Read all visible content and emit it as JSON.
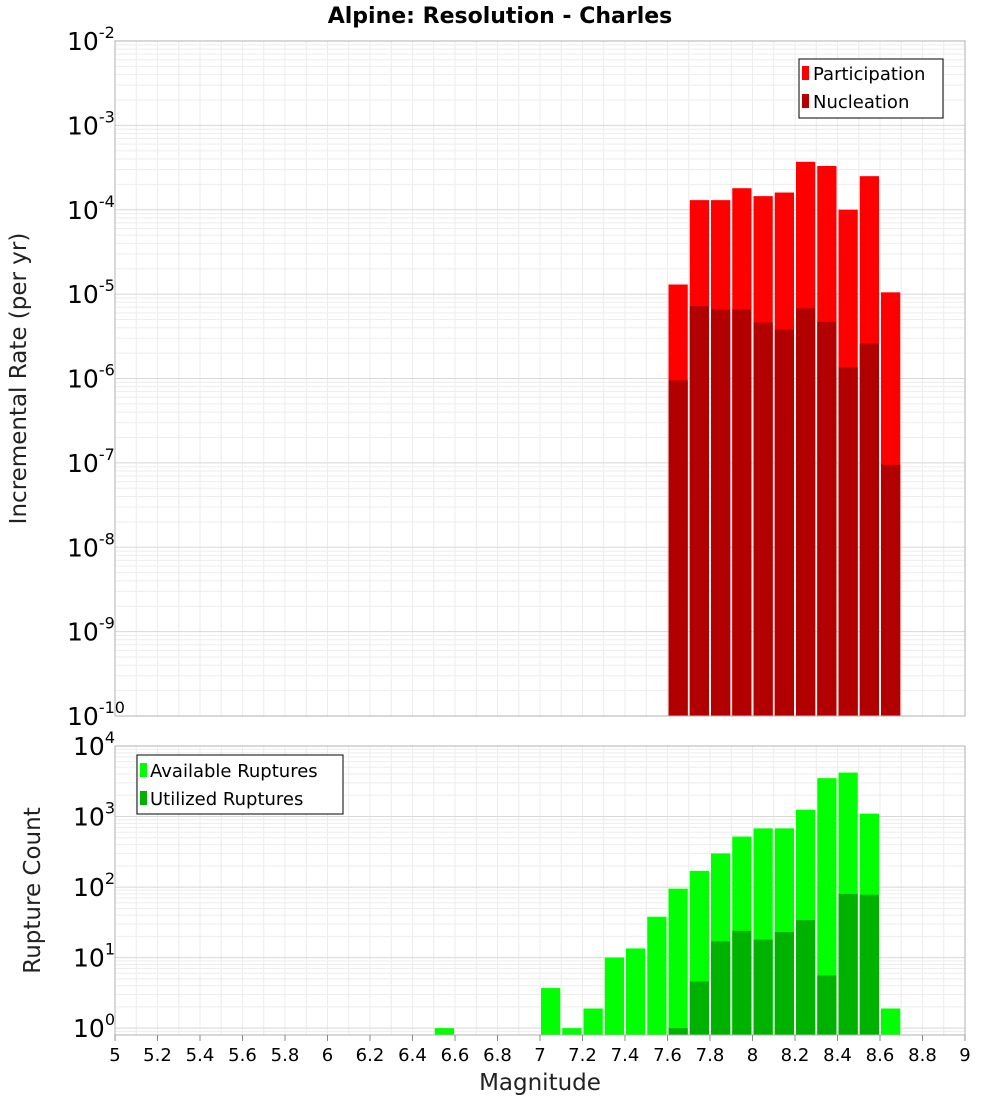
{
  "chart_data": [
    {
      "type": "bar",
      "title": "Alpine: Resolution - Charles",
      "xlabel": "",
      "ylabel": "Incremental Rate (per yr)",
      "yscale": "log",
      "ylim": [
        1e-10,
        0.01
      ],
      "xlim": [
        5,
        9
      ],
      "bin_width": 0.1,
      "grid": true,
      "legend_position": "top-right",
      "x": [
        7.65,
        7.75,
        7.85,
        7.95,
        8.05,
        8.15,
        8.25,
        8.35,
        8.45,
        8.55,
        8.65
      ],
      "series": [
        {
          "name": "Participation",
          "color": "#ff0000",
          "values": [
            1.3e-05,
            0.00013,
            0.00013,
            0.00018,
            0.000145,
            0.00016,
            0.00037,
            0.00033,
            0.0001,
            0.00025,
            1.05e-05
          ]
        },
        {
          "name": "Nucleation",
          "color": "#b20000",
          "values": [
            9.5e-07,
            7.2e-06,
            6.6e-06,
            6.6e-06,
            4.6e-06,
            3.8e-06,
            6.8e-06,
            4.7e-06,
            1.35e-06,
            2.6e-06,
            9.5e-08
          ]
        }
      ]
    },
    {
      "type": "bar",
      "title": "",
      "xlabel": "Magnitude",
      "ylabel": "Rupture Count",
      "yscale": "log",
      "ylim": [
        0.8,
        10000.0
      ],
      "xlim": [
        5,
        9
      ],
      "bin_width": 0.1,
      "xticks": [
        "5",
        "5.2",
        "5.4",
        "5.6",
        "5.8",
        "6",
        "6.2",
        "6.4",
        "6.6",
        "6.8",
        "7",
        "7.2",
        "7.4",
        "7.6",
        "7.8",
        "8",
        "8.2",
        "8.4",
        "8.6",
        "8.8",
        "9"
      ],
      "grid": true,
      "legend_position": "top-left",
      "x": [
        6.55,
        7.05,
        7.15,
        7.25,
        7.35,
        7.45,
        7.55,
        7.65,
        7.75,
        7.85,
        7.95,
        8.05,
        8.15,
        8.25,
        8.35,
        8.45,
        8.55,
        8.65
      ],
      "series": [
        {
          "name": "Available Ruptures",
          "color": "#00ff00",
          "values": [
            1,
            3.7,
            1,
            1.9,
            10,
            13.5,
            38,
            95,
            170,
            300,
            520,
            680,
            680,
            1250,
            3500,
            4200,
            1100,
            1.9
          ]
        },
        {
          "name": "Utilized Ruptures",
          "color": "#00b200",
          "values": [
            0,
            0,
            0,
            0,
            0,
            0,
            0,
            1,
            4.6,
            17,
            24,
            18,
            23,
            34,
            5.6,
            80,
            78,
            0
          ]
        }
      ]
    }
  ]
}
